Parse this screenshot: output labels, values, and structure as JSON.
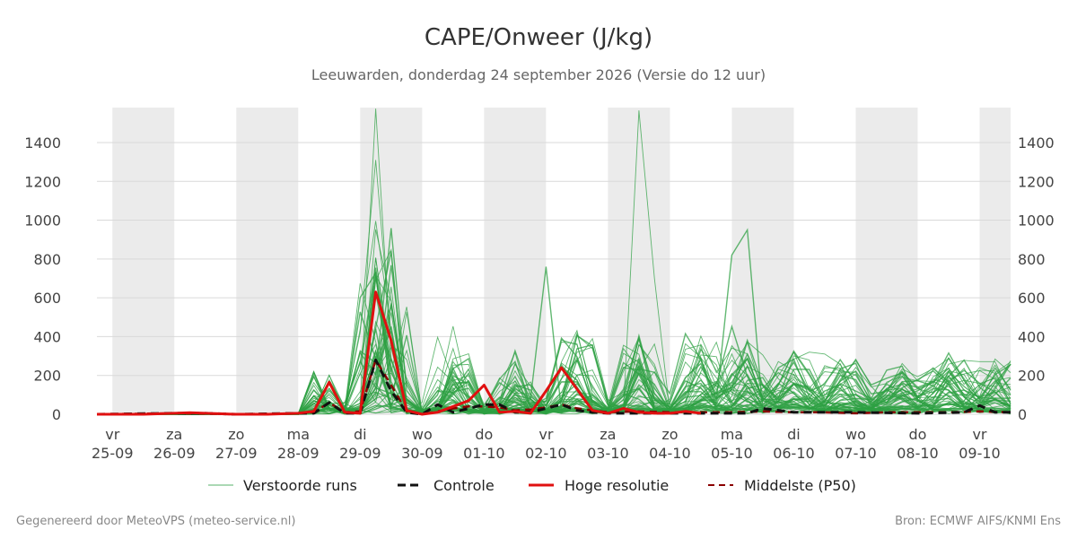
{
  "title": "CAPE/Onweer (J/kg)",
  "subtitle": "Leeuwarden, donderdag 24 september 2026 (Versie do 12 uur)",
  "footer_left": "Gegenereerd door MeteoVPS (meteo-service.nl)",
  "footer_right": "Bron: ECMWF AIFS/KNMI Ens",
  "colors": {
    "ensemble": "#2ea043",
    "control": "#111111",
    "hires": "#e01010",
    "median": "#8b0000",
    "band": "#ebebeb",
    "grid": "#d9d9d9"
  },
  "chart_data": {
    "type": "line",
    "x_unit": "days since 25-09 00h",
    "xlim": [
      -0.25,
      14.5
    ],
    "ylim": [
      0,
      1580
    ],
    "yticks": [
      0,
      200,
      400,
      600,
      800,
      1000,
      1200,
      1400
    ],
    "x_ticks": [
      {
        "day": "vr",
        "date": "25-09"
      },
      {
        "day": "za",
        "date": "26-09"
      },
      {
        "day": "zo",
        "date": "27-09"
      },
      {
        "day": "ma",
        "date": "28-09"
      },
      {
        "day": "di",
        "date": "29-09"
      },
      {
        "day": "wo",
        "date": "30-09"
      },
      {
        "day": "do",
        "date": "01-10"
      },
      {
        "day": "vr",
        "date": "02-10"
      },
      {
        "day": "za",
        "date": "03-10"
      },
      {
        "day": "zo",
        "date": "04-10"
      },
      {
        "day": "ma",
        "date": "05-10"
      },
      {
        "day": "di",
        "date": "06-10"
      },
      {
        "day": "wo",
        "date": "07-10"
      },
      {
        "day": "do",
        "date": "08-10"
      },
      {
        "day": "vr",
        "date": "09-10"
      }
    ],
    "weekend_bands": [
      [
        0,
        1
      ],
      [
        2,
        3
      ],
      [
        4,
        5
      ],
      [
        6,
        7
      ],
      [
        8,
        9
      ],
      [
        10,
        11
      ],
      [
        12,
        13
      ],
      [
        14,
        14.5
      ]
    ],
    "legend": [
      "Verstoorde runs",
      "Controle",
      "Hoge resolutie",
      "Middelste (P50)"
    ],
    "series": [
      {
        "name": "Hoge resolutie",
        "x": [
          -0.25,
          0.5,
          1,
          1.25,
          1.5,
          2,
          2.5,
          3,
          3.25,
          3.5,
          3.75,
          4,
          4.25,
          4.5,
          4.75,
          5,
          5.25,
          5.5,
          5.75,
          6,
          6.25,
          6.5,
          6.75,
          7,
          7.25,
          7.5,
          7.75,
          8,
          8.25,
          8.5,
          8.75,
          9,
          9.25,
          9.5
        ],
        "y": [
          0,
          0,
          5,
          8,
          5,
          0,
          0,
          5,
          15,
          165,
          10,
          5,
          630,
          380,
          20,
          0,
          10,
          40,
          70,
          150,
          10,
          15,
          5,
          120,
          240,
          130,
          20,
          5,
          30,
          10,
          5,
          5,
          15,
          5
        ]
      },
      {
        "name": "Controle",
        "x": [
          -0.25,
          1,
          1.25,
          1.5,
          2,
          3,
          3.25,
          3.5,
          3.75,
          4,
          4.25,
          4.5,
          4.75,
          5,
          5.25,
          5.5,
          5.75,
          6,
          6.25,
          6.5,
          6.75,
          7,
          7.25,
          7.5,
          7.75,
          8,
          9,
          10,
          10.25,
          10.5,
          11,
          12,
          13,
          13.75,
          14,
          14.25,
          14.5
        ],
        "y": [
          0,
          5,
          5,
          5,
          0,
          5,
          5,
          60,
          5,
          5,
          280,
          120,
          10,
          0,
          50,
          10,
          30,
          50,
          50,
          10,
          10,
          30,
          50,
          20,
          10,
          5,
          5,
          5,
          5,
          30,
          10,
          10,
          5,
          10,
          45,
          10,
          10
        ]
      },
      {
        "name": "Middelste (P50)",
        "x": [
          -0.25,
          1,
          2,
          3,
          3.25,
          3.5,
          3.75,
          4,
          4.25,
          4.5,
          4.75,
          5,
          5.25,
          5.5,
          5.75,
          6,
          6.25,
          6.5,
          6.75,
          7,
          7.25,
          7.5,
          7.75,
          8,
          8.5,
          9,
          9.5,
          10,
          10.5,
          11,
          11.5,
          12,
          12.5,
          13,
          13.5,
          14,
          14.5
        ],
        "y": [
          0,
          5,
          0,
          5,
          10,
          60,
          10,
          15,
          280,
          150,
          15,
          0,
          15,
          30,
          40,
          40,
          35,
          20,
          25,
          35,
          50,
          30,
          20,
          10,
          15,
          10,
          10,
          10,
          15,
          10,
          10,
          5,
          10,
          10,
          10,
          15,
          10
        ]
      }
    ],
    "perturbed_runs_note": "50 ensemble members, peaks up to ~1570 near 03-10 18h"
  }
}
